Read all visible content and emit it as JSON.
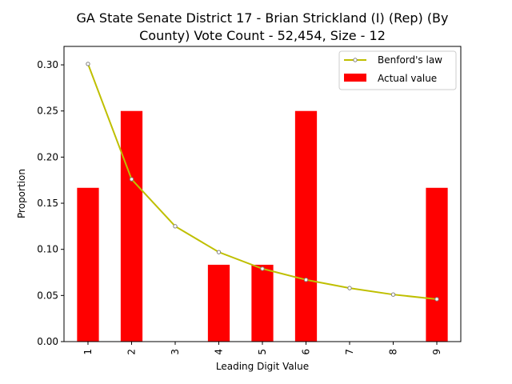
{
  "chart_data": {
    "type": "bar",
    "title_line1": "GA State Senate District 17 - Brian Strickland (I) (Rep) (By",
    "title_line2": "County) Vote Count - 52,454, Size - 12",
    "xlabel": "Leading Digit Value",
    "ylabel": "Proportion",
    "categories": [
      "1",
      "2",
      "3",
      "4",
      "5",
      "6",
      "7",
      "8",
      "9"
    ],
    "ylim": [
      0,
      0.32
    ],
    "yticks": [
      "0.00",
      "0.05",
      "0.10",
      "0.15",
      "0.20",
      "0.25",
      "0.30"
    ],
    "series": [
      {
        "name": "Actual value",
        "kind": "bar",
        "color": "#ff0000",
        "values": [
          0.1667,
          0.25,
          0.0,
          0.0833,
          0.0833,
          0.25,
          0.0,
          0.0,
          0.1667
        ]
      },
      {
        "name": "Benford's law",
        "kind": "line",
        "color": "#bfbf00",
        "values": [
          0.301,
          0.176,
          0.125,
          0.097,
          0.079,
          0.067,
          0.058,
          0.051,
          0.046
        ]
      }
    ],
    "legend_position": "top-right",
    "grid": false
  }
}
